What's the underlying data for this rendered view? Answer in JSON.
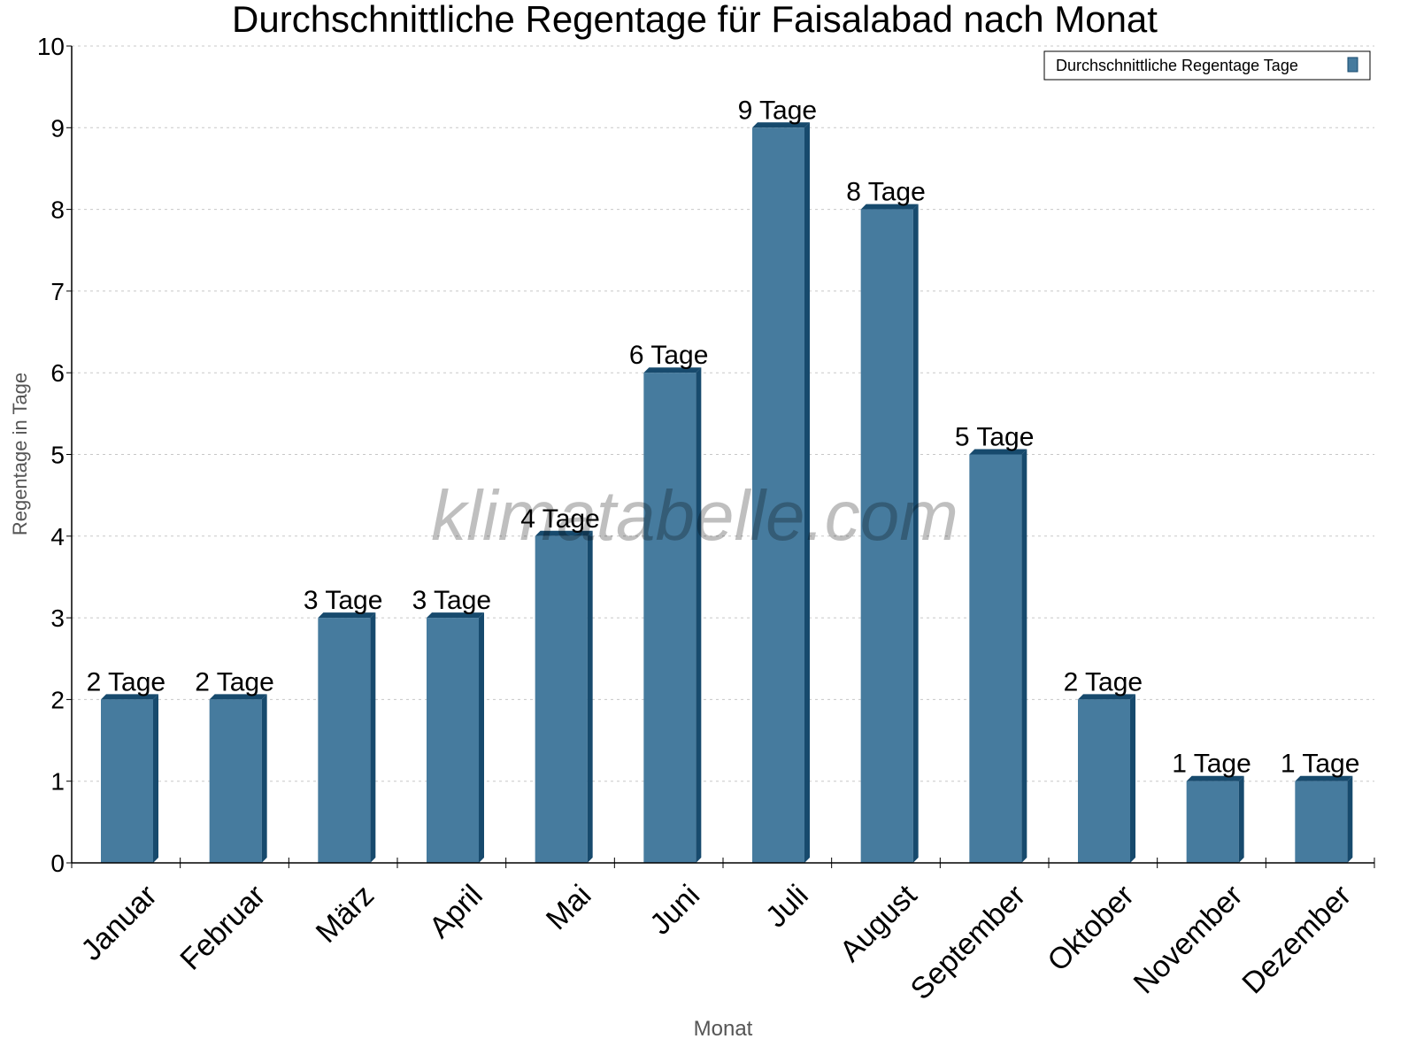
{
  "chart_data": {
    "type": "bar",
    "title": "Durchschnittliche Regentage für Faisalabad nach Monat",
    "xlabel": "Monat",
    "ylabel": "Regentage in Tage",
    "ylim": [
      0,
      10
    ],
    "yticks": [
      0,
      1,
      2,
      3,
      4,
      5,
      6,
      7,
      8,
      9,
      10
    ],
    "grid": true,
    "legend_position": "top-right",
    "watermark": "klimatabelle.com",
    "categories": [
      "Januar",
      "Februar",
      "März",
      "April",
      "Mai",
      "Juni",
      "Juli",
      "August",
      "September",
      "Oktober",
      "November",
      "Dezember"
    ],
    "series": [
      {
        "name": "Durchschnittliche Regentage Tage",
        "values": [
          2,
          2,
          3,
          3,
          4,
          6,
          9,
          8,
          5,
          2,
          1,
          1
        ],
        "labels": [
          "2 Tage",
          "2 Tage",
          "3 Tage",
          "3 Tage",
          "4 Tage",
          "6 Tage",
          "9 Tage",
          "8 Tage",
          "5 Tage",
          "2 Tage",
          "1 Tage",
          "1 Tage"
        ]
      }
    ],
    "colors": {
      "bar": "#467b9e",
      "bar_side": "#174a6d",
      "grid": "#c8c8c8",
      "axis_label": "#555555"
    }
  }
}
